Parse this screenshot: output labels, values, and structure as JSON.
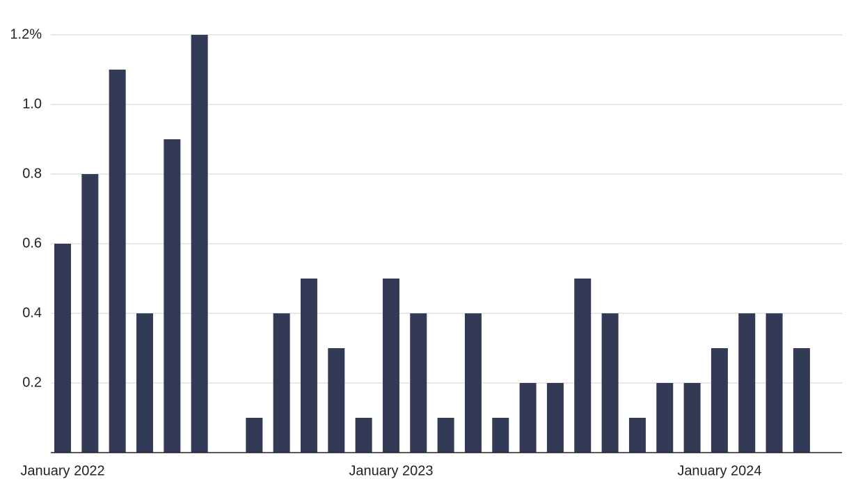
{
  "chart_data": {
    "type": "bar",
    "categories": [
      "January 2022",
      null,
      null,
      null,
      null,
      null,
      null,
      null,
      null,
      null,
      null,
      null,
      "January 2023",
      null,
      null,
      null,
      null,
      null,
      null,
      null,
      null,
      null,
      null,
      null,
      "January 2024",
      null,
      null,
      null
    ],
    "values": [
      0.6,
      0.8,
      1.1,
      0.4,
      0.9,
      1.2,
      0,
      0.1,
      0.4,
      0.5,
      0.3,
      0.1,
      0.5,
      0.4,
      0.1,
      0.4,
      0.1,
      0.2,
      0.2,
      0.5,
      0.4,
      0.1,
      0.2,
      0.2,
      0.3,
      0.4,
      0.4,
      0.3
    ],
    "color": "#333a56",
    "ylim": [
      0,
      1.2
    ],
    "yticks": [
      0.2,
      0.4,
      0.6,
      0.8,
      {
        "value": 1.0,
        "label": "1.0"
      },
      {
        "value": 1.2,
        "label": "1.2%"
      }
    ],
    "grid": true
  }
}
